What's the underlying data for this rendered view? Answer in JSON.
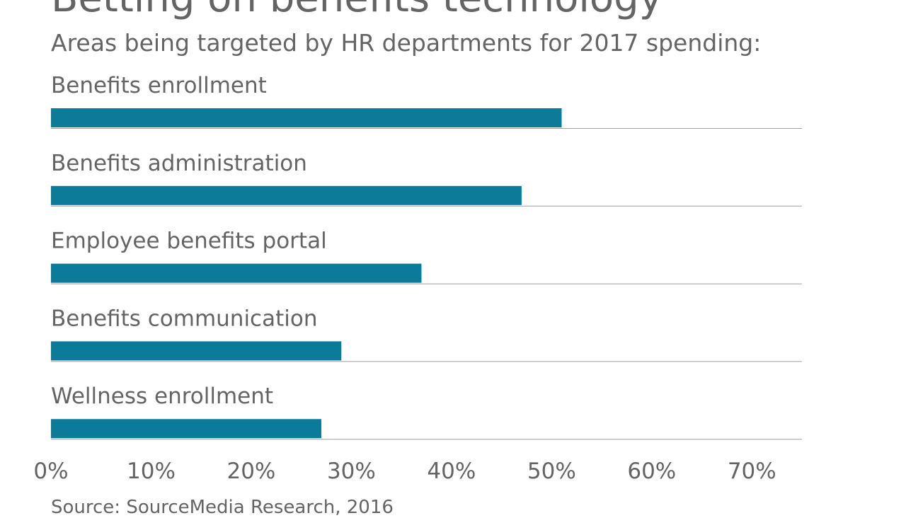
{
  "title": "Betting on benefits technology",
  "subtitle": "Areas being targeted by HR departments for 2017 spending:",
  "source": "Source: SourceMedia Research, 2016",
  "colors": {
    "bar": "#0c7a99",
    "text": "#646464",
    "rule": "#a0a0a0"
  },
  "chart_data": {
    "type": "bar",
    "orientation": "horizontal",
    "title": "Betting on benefits technology",
    "subtitle": "Areas being targeted by HR departments for 2017 spending:",
    "categories": [
      "Benefits enrollment",
      "Benefits administration",
      "Employee benefits portal",
      "Benefits communication",
      "Wellness enrollment"
    ],
    "values": [
      51,
      47,
      37,
      29,
      27
    ],
    "unit": "%",
    "xlim": [
      0,
      75
    ],
    "ticks": [
      "0%",
      "10%",
      "20%",
      "30%",
      "40%",
      "50%",
      "60%",
      "70%"
    ],
    "grid": false
  }
}
